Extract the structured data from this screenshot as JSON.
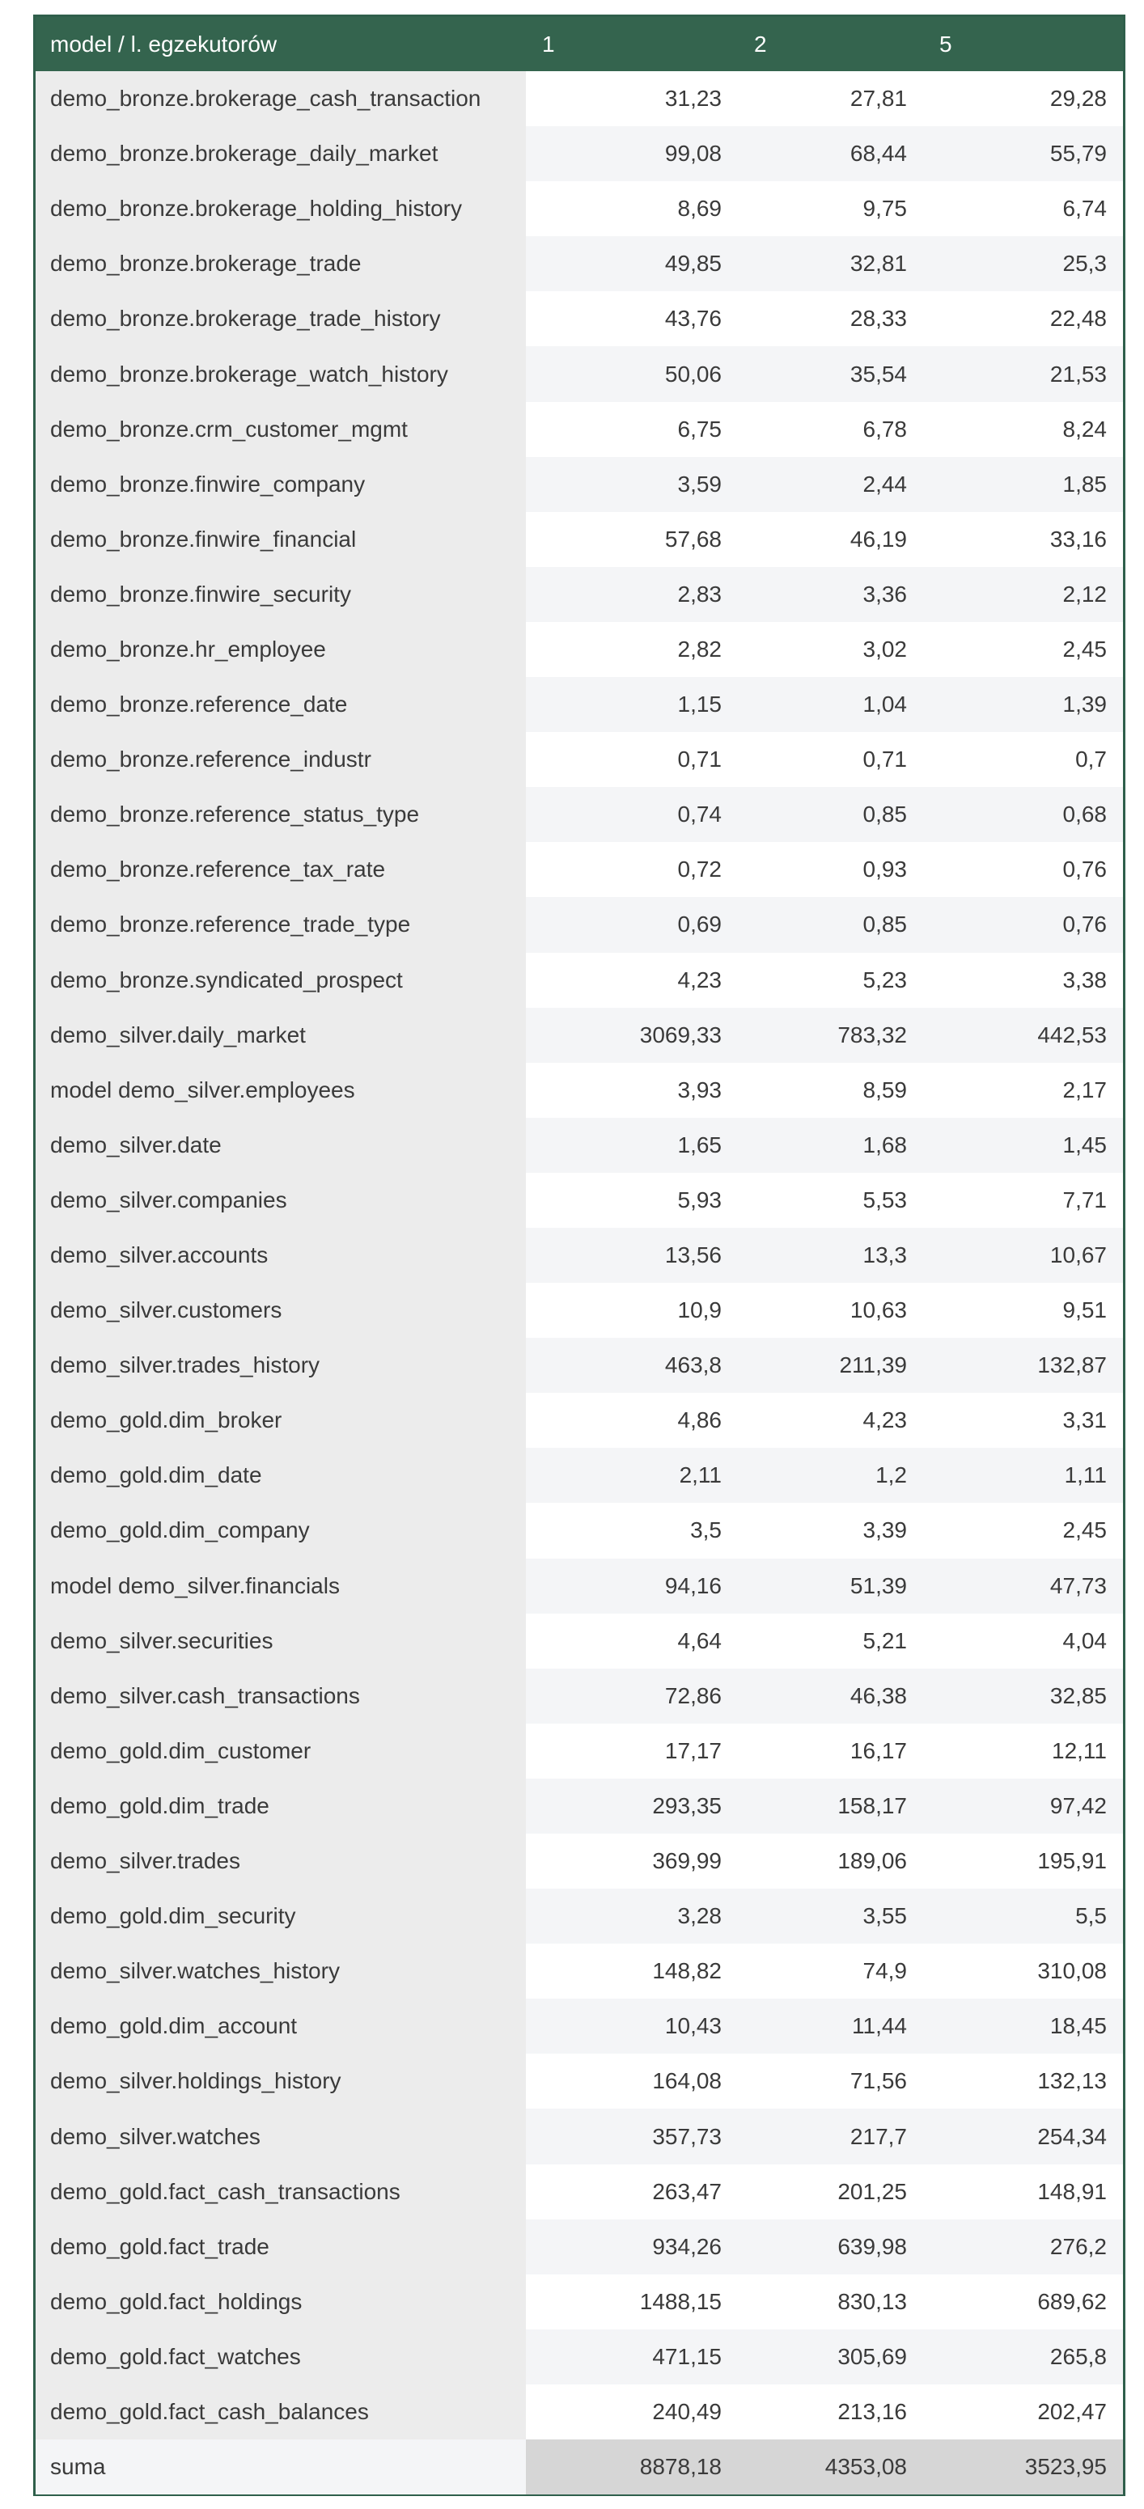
{
  "header": {
    "model_label": "model / l. egzekutorów",
    "col1": "1",
    "col2": "2",
    "col3": "5"
  },
  "rows": [
    {
      "name": "demo_bronze.brokerage_cash_transaction",
      "v1": "31,23",
      "v2": "27,81",
      "v3": "29,28"
    },
    {
      "name": "demo_bronze.brokerage_daily_market",
      "v1": "99,08",
      "v2": "68,44",
      "v3": "55,79"
    },
    {
      "name": "demo_bronze.brokerage_holding_history",
      "v1": "8,69",
      "v2": "9,75",
      "v3": "6,74"
    },
    {
      "name": "demo_bronze.brokerage_trade",
      "v1": "49,85",
      "v2": "32,81",
      "v3": "25,3"
    },
    {
      "name": "demo_bronze.brokerage_trade_history",
      "v1": "43,76",
      "v2": "28,33",
      "v3": "22,48"
    },
    {
      "name": "demo_bronze.brokerage_watch_history",
      "v1": "50,06",
      "v2": "35,54",
      "v3": "21,53"
    },
    {
      "name": "demo_bronze.crm_customer_mgmt",
      "v1": "6,75",
      "v2": "6,78",
      "v3": "8,24"
    },
    {
      "name": "demo_bronze.finwire_company",
      "v1": "3,59",
      "v2": "2,44",
      "v3": "1,85"
    },
    {
      "name": "demo_bronze.finwire_financial",
      "v1": "57,68",
      "v2": "46,19",
      "v3": "33,16"
    },
    {
      "name": "demo_bronze.finwire_security",
      "v1": "2,83",
      "v2": "3,36",
      "v3": "2,12"
    },
    {
      "name": "demo_bronze.hr_employee",
      "v1": "2,82",
      "v2": "3,02",
      "v3": "2,45"
    },
    {
      "name": "demo_bronze.reference_date",
      "v1": "1,15",
      "v2": "1,04",
      "v3": "1,39"
    },
    {
      "name": "demo_bronze.reference_industr",
      "v1": "0,71",
      "v2": "0,71",
      "v3": "0,7"
    },
    {
      "name": "demo_bronze.reference_status_type",
      "v1": "0,74",
      "v2": "0,85",
      "v3": "0,68"
    },
    {
      "name": "demo_bronze.reference_tax_rate",
      "v1": "0,72",
      "v2": "0,93",
      "v3": "0,76"
    },
    {
      "name": "demo_bronze.reference_trade_type",
      "v1": "0,69",
      "v2": "0,85",
      "v3": "0,76"
    },
    {
      "name": "demo_bronze.syndicated_prospect",
      "v1": "4,23",
      "v2": "5,23",
      "v3": "3,38"
    },
    {
      "name": "demo_silver.daily_market",
      "v1": "3069,33",
      "v2": "783,32",
      "v3": "442,53"
    },
    {
      "name": "model demo_silver.employees",
      "v1": "3,93",
      "v2": "8,59",
      "v3": "2,17"
    },
    {
      "name": "demo_silver.date",
      "v1": "1,65",
      "v2": "1,68",
      "v3": "1,45"
    },
    {
      "name": "demo_silver.companies",
      "v1": "5,93",
      "v2": "5,53",
      "v3": "7,71"
    },
    {
      "name": "demo_silver.accounts",
      "v1": "13,56",
      "v2": "13,3",
      "v3": "10,67"
    },
    {
      "name": "demo_silver.customers",
      "v1": "10,9",
      "v2": "10,63",
      "v3": "9,51"
    },
    {
      "name": "demo_silver.trades_history",
      "v1": "463,8",
      "v2": "211,39",
      "v3": "132,87"
    },
    {
      "name": "demo_gold.dim_broker",
      "v1": "4,86",
      "v2": "4,23",
      "v3": "3,31"
    },
    {
      "name": "demo_gold.dim_date",
      "v1": "2,11",
      "v2": "1,2",
      "v3": "1,11"
    },
    {
      "name": "demo_gold.dim_company",
      "v1": "3,5",
      "v2": "3,39",
      "v3": "2,45"
    },
    {
      "name": "model demo_silver.financials",
      "v1": "94,16",
      "v2": "51,39",
      "v3": "47,73"
    },
    {
      "name": "demo_silver.securities",
      "v1": "4,64",
      "v2": "5,21",
      "v3": "4,04"
    },
    {
      "name": "demo_silver.cash_transactions",
      "v1": "72,86",
      "v2": "46,38",
      "v3": "32,85"
    },
    {
      "name": "demo_gold.dim_customer",
      "v1": "17,17",
      "v2": "16,17",
      "v3": "12,11"
    },
    {
      "name": "demo_gold.dim_trade",
      "v1": "293,35",
      "v2": "158,17",
      "v3": "97,42"
    },
    {
      "name": "demo_silver.trades",
      "v1": "369,99",
      "v2": "189,06",
      "v3": "195,91"
    },
    {
      "name": "demo_gold.dim_security",
      "v1": "3,28",
      "v2": "3,55",
      "v3": "5,5"
    },
    {
      "name": "demo_silver.watches_history",
      "v1": "148,82",
      "v2": "74,9",
      "v3": "310,08"
    },
    {
      "name": "demo_gold.dim_account",
      "v1": "10,43",
      "v2": "11,44",
      "v3": "18,45"
    },
    {
      "name": "demo_silver.holdings_history",
      "v1": "164,08",
      "v2": "71,56",
      "v3": "132,13"
    },
    {
      "name": "demo_silver.watches",
      "v1": "357,73",
      "v2": "217,7",
      "v3": "254,34"
    },
    {
      "name": "demo_gold.fact_cash_transactions",
      "v1": "263,47",
      "v2": "201,25",
      "v3": "148,91"
    },
    {
      "name": "demo_gold.fact_trade",
      "v1": "934,26",
      "v2": "639,98",
      "v3": "276,2"
    },
    {
      "name": "demo_gold.fact_holdings",
      "v1": "1488,15",
      "v2": "830,13",
      "v3": "689,62"
    },
    {
      "name": "demo_gold.fact_watches",
      "v1": "471,15",
      "v2": "305,69",
      "v3": "265,8"
    },
    {
      "name": "demo_gold.fact_cash_balances",
      "v1": "240,49",
      "v2": "213,16",
      "v3": "202,47"
    }
  ],
  "sum": {
    "name": "suma",
    "v1": "8878,18",
    "v2": "4353,08",
    "v3": "3523,95"
  }
}
